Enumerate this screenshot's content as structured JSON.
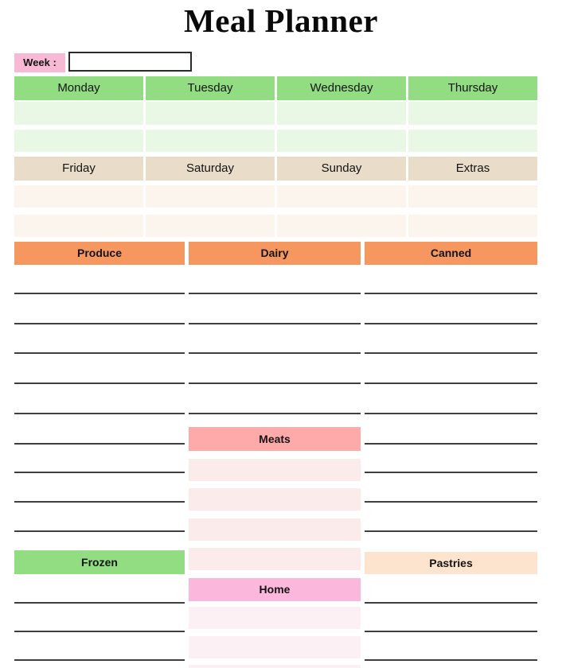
{
  "title": "Meal Planner",
  "week": {
    "label": "Week :",
    "value": "",
    "label_bg": "#F8B9D5"
  },
  "planner": {
    "week1": {
      "days": [
        "Monday",
        "Tuesday",
        "Wednesday",
        "Thursday"
      ],
      "header_bg": "#92DC81",
      "row_bg": "#E9F8E4"
    },
    "week2": {
      "days": [
        "Friday",
        "Saturday",
        "Sunday",
        "Extras"
      ],
      "header_bg": "#E9DCC8",
      "row_bg": "#FCF5EE"
    }
  },
  "grocery": {
    "categories": {
      "labels": [
        "Produce",
        "Dairy",
        "Canned"
      ],
      "bg": "#F69760"
    },
    "meats": {
      "label": "Meats",
      "bg": "#FFAAAA",
      "row_bg": "#FCEBEB"
    },
    "frozen": {
      "label": "Frozen",
      "bg": "#92DC81"
    },
    "pastries": {
      "label": "Pastries",
      "bg": "#FCE4CE"
    },
    "home": {
      "label": "Home",
      "bg": "#FBB7DC",
      "row_bg": "#FDF0F5"
    }
  },
  "line_color": "#3F3F3F"
}
